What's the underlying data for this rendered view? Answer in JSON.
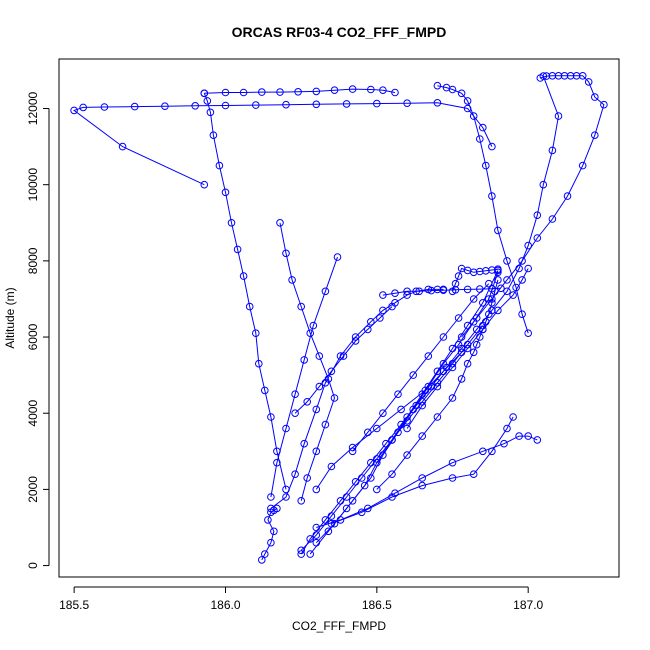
{
  "chart_data": {
    "type": "scatter",
    "title": "ORCAS RF03-4 CO2_FFF_FMPD",
    "xlabel": "CO2_FFF_FMPD",
    "ylabel": "Altitude (m)",
    "xlim": [
      185.45,
      187.3
    ],
    "ylim": [
      -300,
      13300
    ],
    "xticks": [
      185.5,
      186.0,
      186.5,
      187.0
    ],
    "xtick_labels": [
      "185.5",
      "186.0",
      "186.5",
      "187.0"
    ],
    "yticks": [
      0,
      2000,
      4000,
      6000,
      8000,
      10000,
      12000
    ],
    "ytick_labels": [
      "0",
      "2000",
      "4000",
      "6000",
      "8000",
      "10000",
      "12000"
    ],
    "grid": false,
    "legend": "none",
    "color": "#0000ff",
    "marker": "open-circle",
    "lines_connect_points": true,
    "series": [
      {
        "x": [
          186.12,
          186.13,
          186.15,
          186.16,
          186.14,
          186.15,
          186.17,
          186.16
        ],
        "y": [
          150,
          300,
          600,
          900,
          1200,
          1400,
          1500,
          1450
        ]
      },
      {
        "x": [
          186.15,
          186.2,
          186.23,
          186.26,
          186.3,
          186.33,
          186.38,
          186.43,
          186.48,
          186.52,
          186.56,
          186.6,
          186.63,
          186.67,
          186.7,
          186.72
        ],
        "y": [
          1500,
          1800,
          2400,
          3200,
          4100,
          4800,
          5500,
          6000,
          6400,
          6700,
          6900,
          7100,
          7200,
          7250,
          7250,
          7250
        ]
      },
      {
        "x": [
          186.2,
          186.17,
          186.15,
          186.13,
          186.11,
          186.1,
          186.08,
          186.06,
          186.04,
          186.02,
          186.0,
          185.98,
          185.96,
          185.95,
          185.94,
          185.93
        ],
        "y": [
          2000,
          3000,
          3900,
          4600,
          5300,
          6100,
          6800,
          7600,
          8300,
          9000,
          9800,
          10500,
          11300,
          11900,
          12200,
          12400
        ]
      },
      {
        "x": [
          185.93,
          186.0,
          186.06,
          186.12,
          186.18,
          186.24,
          186.3,
          186.36,
          186.42,
          186.48,
          186.52,
          186.56
        ],
        "y": [
          12400,
          12420,
          12420,
          12430,
          12430,
          12440,
          12450,
          12480,
          12510,
          12500,
          12480,
          12420
        ]
      },
      {
        "x": [
          185.93,
          185.66,
          185.5,
          185.53,
          185.6,
          185.7,
          185.8,
          185.9,
          186.0,
          186.1,
          186.2,
          186.3,
          186.4,
          186.5,
          186.6,
          186.7,
          186.8,
          186.85,
          186.88
        ],
        "y": [
          10000,
          11000,
          11950,
          12030,
          12040,
          12050,
          12060,
          12070,
          12080,
          12090,
          12100,
          12110,
          12120,
          12130,
          12140,
          12150,
          12000,
          11500,
          11000
        ]
      },
      {
        "x": [
          186.7,
          186.73,
          186.75,
          186.78,
          186.8,
          186.82,
          186.84,
          186.86,
          186.88,
          186.9,
          186.93,
          186.96,
          186.98,
          187.0
        ],
        "y": [
          12600,
          12550,
          12500,
          12400,
          12200,
          11800,
          11200,
          10500,
          9700,
          8800,
          8000,
          7300,
          6600,
          6100
        ]
      },
      {
        "x": [
          187.04,
          187.06,
          187.08,
          187.1,
          187.12,
          187.14,
          187.16,
          187.18,
          187.2,
          187.22,
          187.25,
          187.22,
          187.18,
          187.13,
          187.08,
          187.03,
          186.98,
          186.93,
          186.88,
          186.83,
          186.78
        ],
        "y": [
          12800,
          12850,
          12860,
          12860,
          12860,
          12860,
          12860,
          12860,
          12700,
          12300,
          12100,
          11300,
          10500,
          9700,
          9100,
          8600,
          8000,
          7500,
          7000,
          6500,
          6000
        ]
      },
      {
        "x": [
          187.05,
          187.1,
          187.08,
          187.05,
          187.03,
          187.0,
          186.97,
          186.93,
          186.88,
          186.83,
          186.78,
          186.73,
          186.68,
          186.63,
          186.58,
          186.53,
          186.48,
          186.43,
          186.38,
          186.33,
          186.28,
          186.25
        ],
        "y": [
          12850,
          11800,
          10900,
          10000,
          9200,
          8400,
          7800,
          7200,
          6700,
          6200,
          5700,
          5200,
          4700,
          4200,
          3700,
          3200,
          2700,
          2200,
          1700,
          1200,
          700,
          300
        ]
      },
      {
        "x": [
          186.18,
          186.2,
          186.22,
          186.25,
          186.28,
          186.31,
          186.34,
          186.36,
          186.33,
          186.3,
          186.27,
          186.25
        ],
        "y": [
          9000,
          8200,
          7500,
          6800,
          6100,
          5500,
          4900,
          4400,
          3700,
          3000,
          2300,
          1700
        ]
      },
      {
        "x": [
          186.37,
          186.33,
          186.29,
          186.26,
          186.23,
          186.2,
          186.17,
          186.15
        ],
        "y": [
          8100,
          7200,
          6300,
          5400,
          4500,
          3600,
          2700,
          1800
        ]
      },
      {
        "x": [
          186.3,
          186.36,
          186.42,
          186.48,
          186.52,
          186.57,
          186.62,
          186.67,
          186.72,
          186.77,
          186.82,
          186.87,
          186.9
        ],
        "y": [
          600,
          1100,
          1700,
          2300,
          2900,
          3500,
          4100,
          4700,
          5300,
          5800,
          6400,
          7000,
          7700
        ]
      },
      {
        "x": [
          186.28,
          186.34,
          186.4,
          186.46,
          186.5,
          186.55,
          186.6,
          186.65,
          186.7,
          186.75,
          186.8,
          186.85,
          186.9
        ],
        "y": [
          300,
          900,
          1500,
          2100,
          2700,
          3300,
          3900,
          4500,
          5100,
          5700,
          6300,
          6900,
          7750
        ]
      },
      {
        "x": [
          186.25,
          186.3,
          186.35,
          186.4,
          186.45,
          186.5,
          186.55,
          186.6,
          186.65,
          186.7,
          186.75,
          186.8,
          186.85
        ],
        "y": [
          400,
          800,
          1300,
          1800,
          2300,
          2800,
          3300,
          3800,
          4300,
          4800,
          5300,
          5800,
          6300
        ]
      },
      {
        "x": [
          186.3,
          186.38,
          186.47,
          186.56,
          186.65,
          186.75,
          186.85,
          186.92,
          186.97,
          187.0,
          187.03
        ],
        "y": [
          1000,
          1200,
          1500,
          1900,
          2300,
          2700,
          3000,
          3200,
          3400,
          3400,
          3300
        ]
      },
      {
        "x": [
          186.35,
          186.45,
          186.55,
          186.65,
          186.75,
          186.82,
          186.88,
          186.93,
          186.95
        ],
        "y": [
          1100,
          1400,
          1800,
          2100,
          2300,
          2400,
          3000,
          3600,
          3900
        ]
      },
      {
        "x": [
          186.5,
          186.55,
          186.6,
          186.65,
          186.7,
          186.75,
          186.78,
          186.8,
          186.82,
          186.83,
          186.84,
          186.85,
          186.86,
          186.87,
          186.88,
          186.89,
          186.9
        ],
        "y": [
          2000,
          2400,
          2900,
          3400,
          3900,
          4400,
          4900,
          5300,
          5600,
          5800,
          6000,
          6200,
          6400,
          6600,
          6900,
          7200,
          7500
        ]
      },
      {
        "x": [
          186.6,
          186.65,
          186.7,
          186.75,
          186.8,
          186.85,
          186.9,
          186.95,
          186.98,
          187.0
        ],
        "y": [
          3600,
          4200,
          4700,
          5200,
          5700,
          6200,
          6700,
          7100,
          7500,
          7800
        ]
      },
      {
        "x": [
          186.52,
          186.56,
          186.6,
          186.64,
          186.68,
          186.72,
          186.76,
          186.8,
          186.84,
          186.88,
          186.91
        ],
        "y": [
          7100,
          7150,
          7200,
          7200,
          7220,
          7230,
          7240,
          7250,
          7260,
          7270,
          7280
        ]
      },
      {
        "x": [
          186.75,
          186.76,
          186.77,
          186.78,
          186.8,
          186.82,
          186.84,
          186.86,
          186.88,
          186.9
        ],
        "y": [
          7200,
          7400,
          7600,
          7800,
          7750,
          7700,
          7720,
          7740,
          7760,
          7780
        ]
      },
      {
        "x": [
          186.23,
          186.27,
          186.31,
          186.35,
          186.39,
          186.43,
          186.47,
          186.51,
          186.55
        ],
        "y": [
          4000,
          4300,
          4700,
          5100,
          5500,
          5900,
          6200,
          6500,
          6800
        ]
      },
      {
        "x": [
          186.3,
          186.35,
          186.42,
          186.5,
          186.58,
          186.66,
          186.72,
          186.78
        ],
        "y": [
          2000,
          2600,
          3100,
          3600,
          4100,
          4600,
          5100,
          5600
        ]
      },
      {
        "x": [
          186.42,
          186.47,
          186.52,
          186.57,
          186.62,
          186.67,
          186.72,
          186.77,
          186.82,
          186.87
        ],
        "y": [
          3000,
          3500,
          4000,
          4500,
          5000,
          5500,
          6000,
          6500,
          7000,
          7400
        ]
      }
    ]
  }
}
